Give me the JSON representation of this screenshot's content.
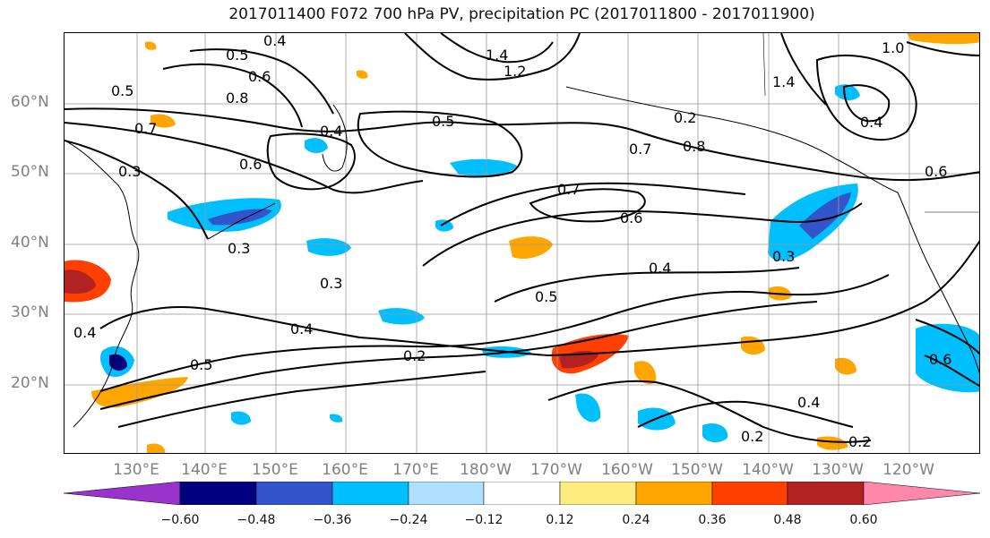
{
  "title": "2017011400 F072 700 hPa PV, precipitation PC (2017011800 - 2017011900)",
  "lat_labels": [
    "60°N",
    "50°N",
    "40°N",
    "30°N",
    "20°N"
  ],
  "lon_labels": [
    "130°E",
    "140°E",
    "150°E",
    "160°E",
    "170°E",
    "180°W",
    "170°W",
    "160°W",
    "150°W",
    "140°W",
    "130°W",
    "120°W"
  ],
  "colorbar": {
    "colors": [
      "#9933cc",
      "#000080",
      "#3355cc",
      "#00bfff",
      "#b0e0ff",
      "#ffffff",
      "#ffec80",
      "#ffa500",
      "#ff4000",
      "#b22222",
      "#ff88aa"
    ],
    "ticks": [
      "−0.60",
      "−0.48",
      "−0.36",
      "−0.24",
      "−0.12",
      "0.12",
      "0.24",
      "0.36",
      "0.48",
      "0.60"
    ]
  },
  "contour_labels": [
    "0.4",
    "0.5",
    "0.6",
    "0.8",
    "1.4",
    "1.2",
    "0.5",
    "0.7",
    "0.3",
    "0.4",
    "0.6",
    "0.7",
    "0.8",
    "0.2",
    "0.7",
    "0.6",
    "0.3",
    "0.4",
    "0.5",
    "0.4",
    "0.2",
    "0.3",
    "0.5",
    "0.4",
    "0.4",
    "0.2",
    "0.6",
    "1.0",
    "1.4",
    "0.4",
    "0.5",
    "0.3",
    "0.2",
    "0.6"
  ]
}
